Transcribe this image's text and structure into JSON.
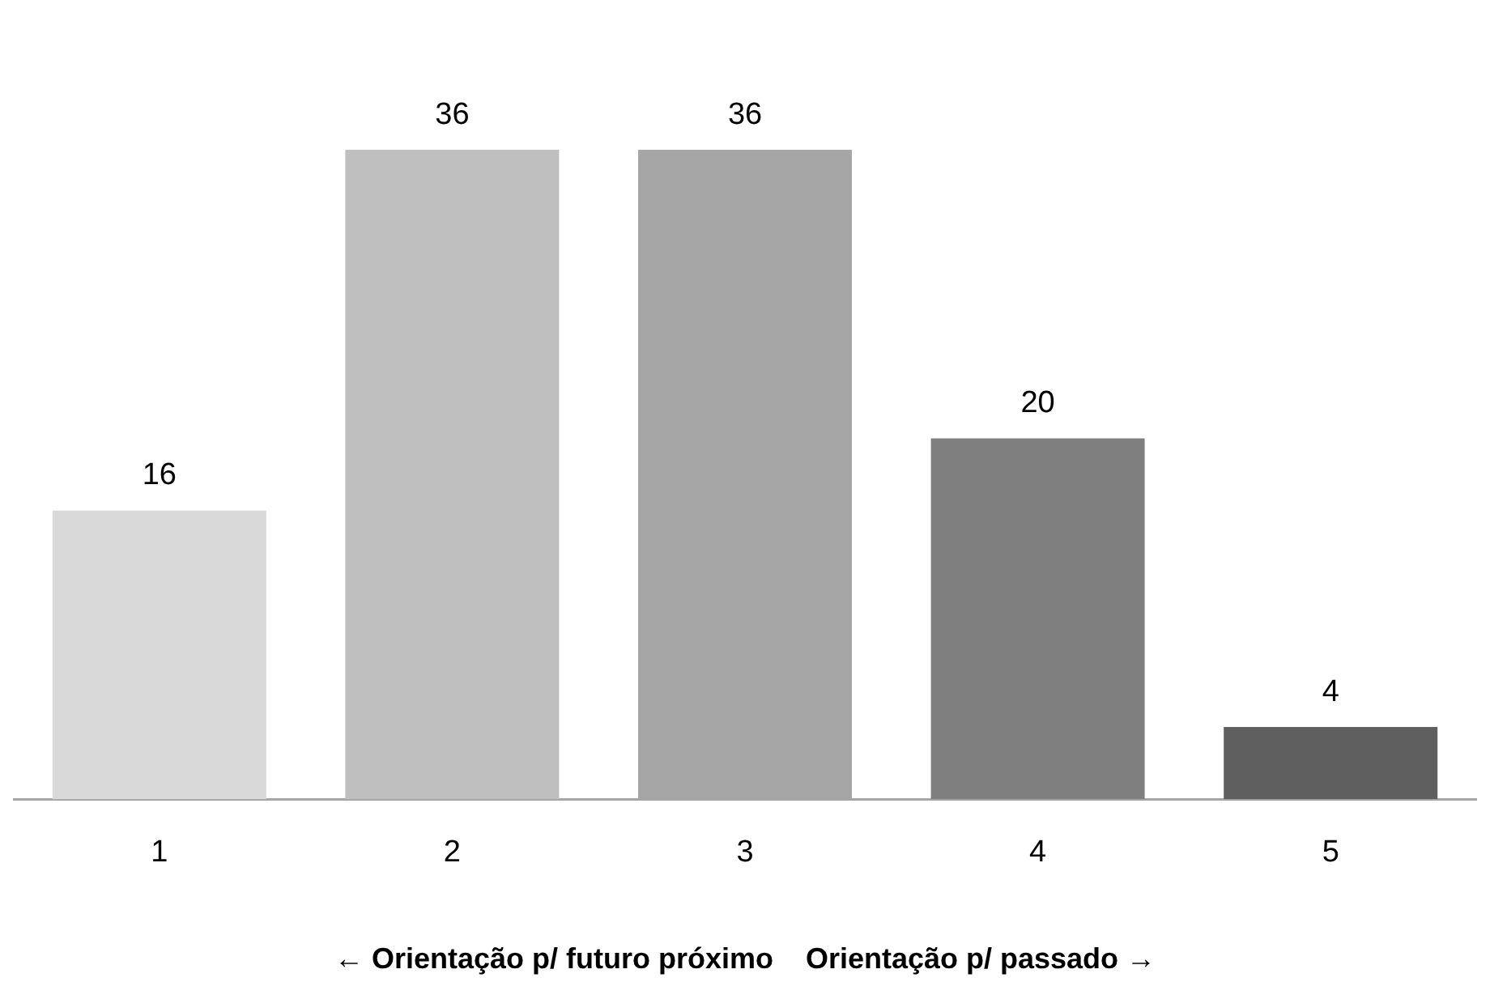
{
  "chart_data": {
    "type": "bar",
    "xlabel": "← Orientação p/ futuro próximo    Orientação p/ passado →",
    "categories": [
      "1",
      "2",
      "3",
      "4",
      "5"
    ],
    "values": [
      16,
      36,
      36,
      20,
      4
    ],
    "colors": [
      "#d9d9d9",
      "#bfbfbf",
      "#a6a6a6",
      "#7f7f7f",
      "#5f5f5f"
    ],
    "data_labels": true
  }
}
